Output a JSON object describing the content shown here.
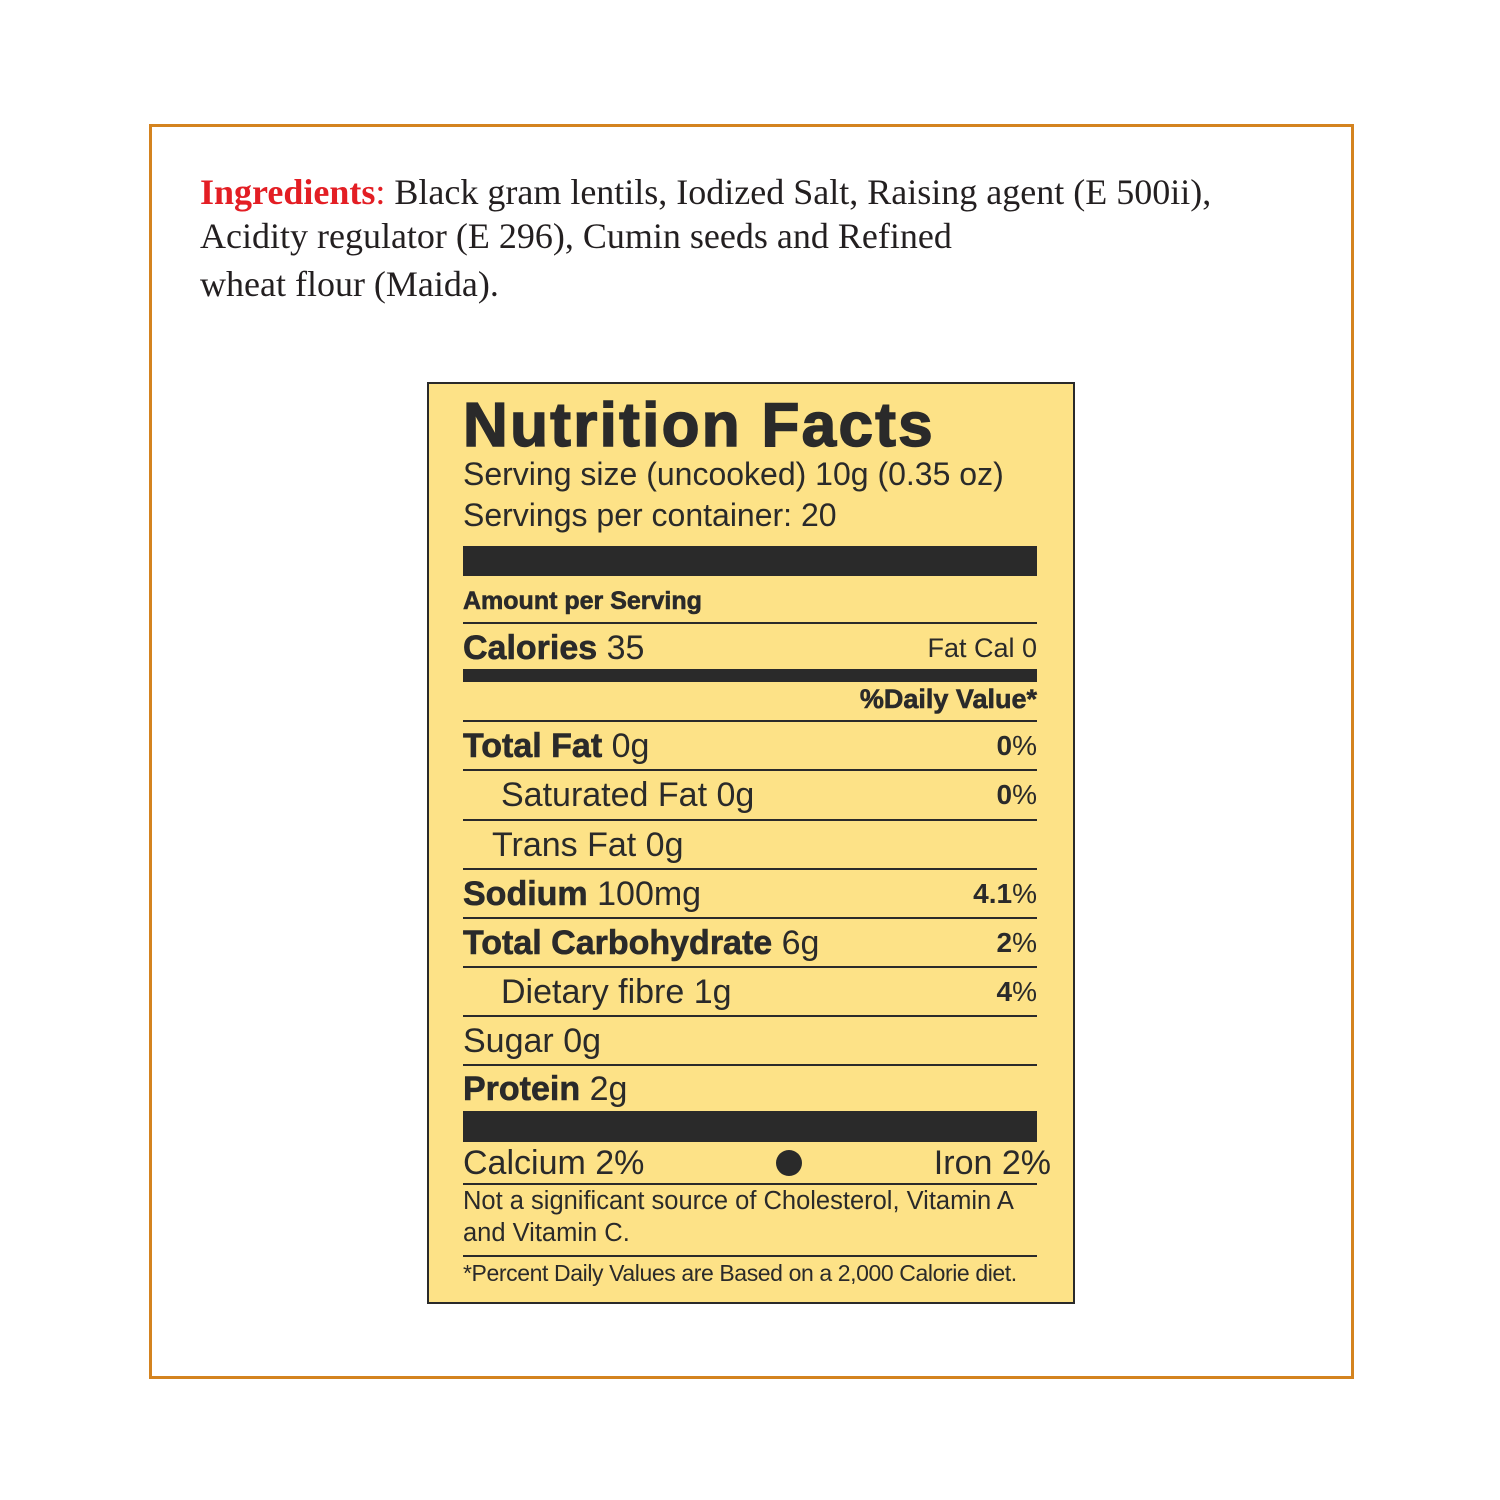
{
  "ingredients": {
    "label": "Ingredients",
    "separator": ":",
    "line1": " Black gram lentils, Iodized Salt, Raising agent (E 500ii),",
    "line2": "Acidity regulator (E 296), Cumin seeds and Refined",
    "line3": "wheat flour (Maida)."
  },
  "nutrition": {
    "title": "Nutrition Facts",
    "serving_size": "Serving size (uncooked) 10g (0.35 oz)",
    "servings_per_container": "Servings per container:  20",
    "amount_per_serving": "Amount per Serving",
    "calories_label": "Calories",
    "calories_value": "35",
    "fat_cal": "Fat Cal 0",
    "daily_value_header": "%Daily Value*",
    "rows": [
      {
        "name": "Total Fat",
        "amount": "0g",
        "dv_num": "0",
        "dv_sign": "%"
      },
      {
        "name": "Saturated Fat",
        "amount": "0g",
        "dv_num": "0",
        "dv_sign": "%"
      },
      {
        "name": "Trans Fat",
        "amount": "0g"
      },
      {
        "name": "Sodium",
        "amount": "100mg",
        "dv_num": "4.1",
        "dv_sign": "%"
      },
      {
        "name": "Total Carbohydrate",
        "amount": "6g",
        "dv_num": "2",
        "dv_sign": "%"
      },
      {
        "name": "Dietary fibre",
        "amount": "1g",
        "dv_num": "4",
        "dv_sign": "%"
      },
      {
        "name": "Sugar",
        "amount": "0g"
      },
      {
        "name": "Protein",
        "amount": "2g"
      }
    ],
    "calcium": "Calcium 2%",
    "iron": "Iron 2%",
    "note": "Not a significant source of Cholesterol, Vitamin A and Vitamin C.",
    "footnote": "*Percent Daily Values are Based on a 2,000 Calorie diet."
  },
  "colors": {
    "border": "#d4831f",
    "label_bg": "#fde287",
    "ingredients_label": "#e31e24",
    "ink": "#2a2a2a"
  }
}
